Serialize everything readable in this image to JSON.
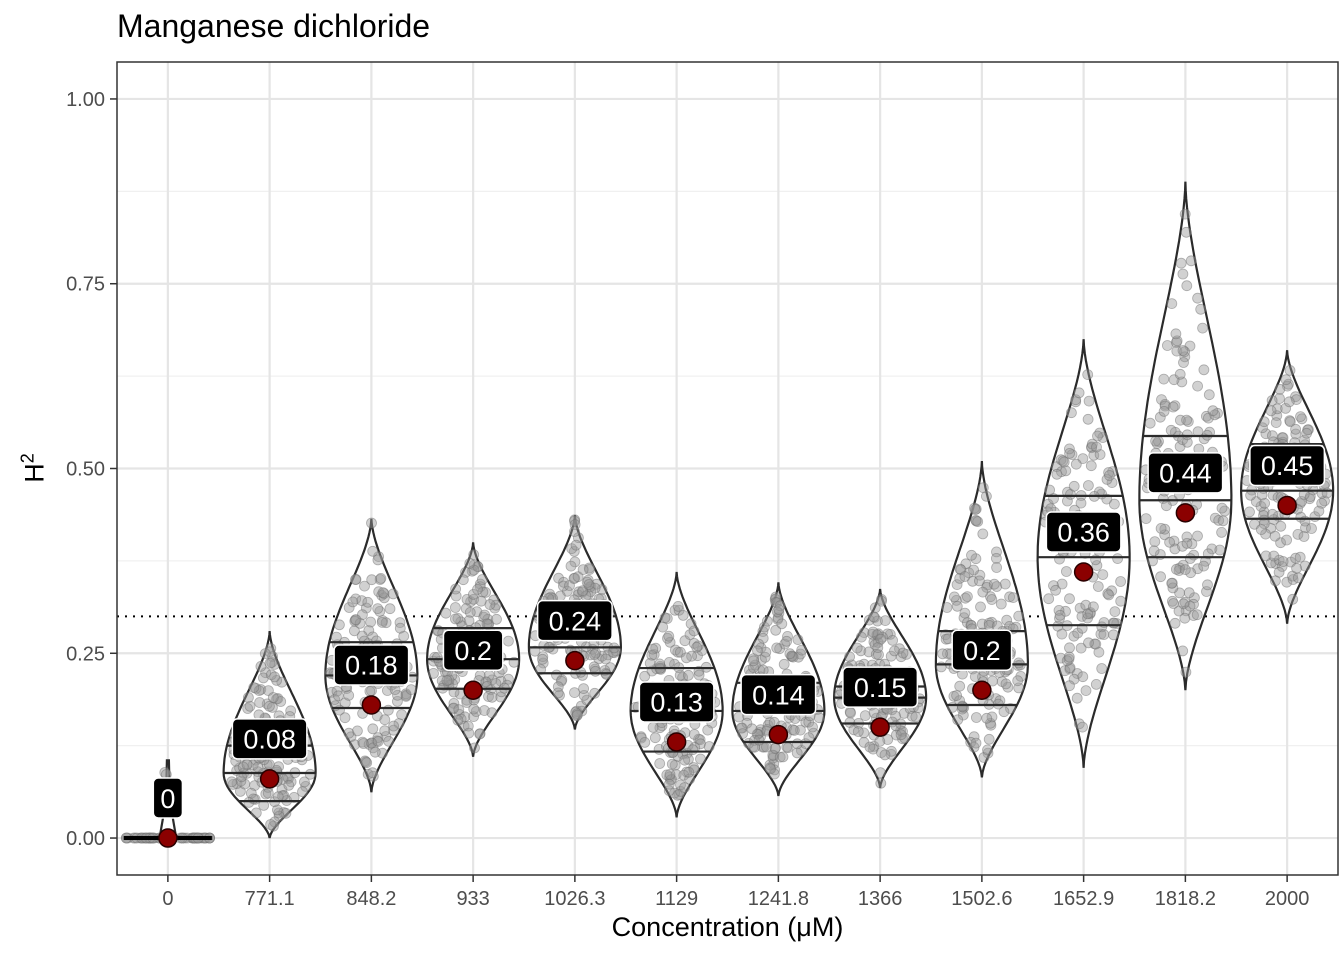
{
  "chart_data": {
    "type": "violin",
    "title": "Manganese dichloride",
    "xlabel": "Concentration (μM)",
    "ylabel_main": "H",
    "ylabel_sup": "2",
    "ylim": [
      -0.05,
      1.05
    ],
    "yticks": [
      0.0,
      0.25,
      0.5,
      0.75,
      1.0
    ],
    "ytick_labels": [
      "0.00",
      "0.25",
      "0.50",
      "0.75",
      "1.00"
    ],
    "grid": true,
    "reference_line": 0.3,
    "categories": [
      "0",
      "771.1",
      "848.2",
      "933",
      "1026.3",
      "1129",
      "1241.8",
      "1366",
      "1502.6",
      "1652.9",
      "1818.2",
      "2000"
    ],
    "means": [
      0,
      0.08,
      0.18,
      0.2,
      0.24,
      0.13,
      0.14,
      0.15,
      0.2,
      0.36,
      0.44,
      0.45
    ],
    "mean_labels": [
      "0",
      "0.08",
      "0.18",
      "0.2",
      "0.24",
      "0.13",
      "0.14",
      "0.15",
      "0.2",
      "0.36",
      "0.44",
      "0.45"
    ],
    "distribution": [
      {
        "min": 0.0,
        "max": 0.105,
        "q1": 0.0,
        "median": 0.0,
        "q3": 0.0
      },
      {
        "min": 0.0,
        "max": 0.28,
        "q1": 0.05,
        "median": 0.088,
        "q3": 0.125
      },
      {
        "min": 0.062,
        "max": 0.432,
        "q1": 0.176,
        "median": 0.22,
        "q3": 0.265
      },
      {
        "min": 0.11,
        "max": 0.4,
        "q1": 0.202,
        "median": 0.242,
        "q3": 0.284
      },
      {
        "min": 0.147,
        "max": 0.437,
        "q1": 0.223,
        "median": 0.258,
        "q3": 0.3
      },
      {
        "min": 0.028,
        "max": 0.36,
        "q1": 0.117,
        "median": 0.172,
        "q3": 0.23
      },
      {
        "min": 0.057,
        "max": 0.346,
        "q1": 0.13,
        "median": 0.172,
        "q3": 0.21
      },
      {
        "min": 0.068,
        "max": 0.337,
        "q1": 0.155,
        "median": 0.19,
        "q3": 0.205
      },
      {
        "min": 0.082,
        "max": 0.51,
        "q1": 0.18,
        "median": 0.235,
        "q3": 0.28
      },
      {
        "min": 0.095,
        "max": 0.675,
        "q1": 0.288,
        "median": 0.38,
        "q3": 0.463
      },
      {
        "min": 0.2,
        "max": 0.888,
        "q1": 0.38,
        "median": 0.457,
        "q3": 0.544
      },
      {
        "min": 0.29,
        "max": 0.66,
        "q1": 0.432,
        "median": 0.47,
        "q3": 0.533
      }
    ],
    "colors": {
      "violin_outline": "#2b2b2b",
      "points": "#9a9a9a",
      "mean_point": "#8b0000",
      "label_fill": "#000000",
      "label_text": "#ffffff",
      "grid": "#e5e5e5",
      "reference_line": "#000000"
    }
  }
}
